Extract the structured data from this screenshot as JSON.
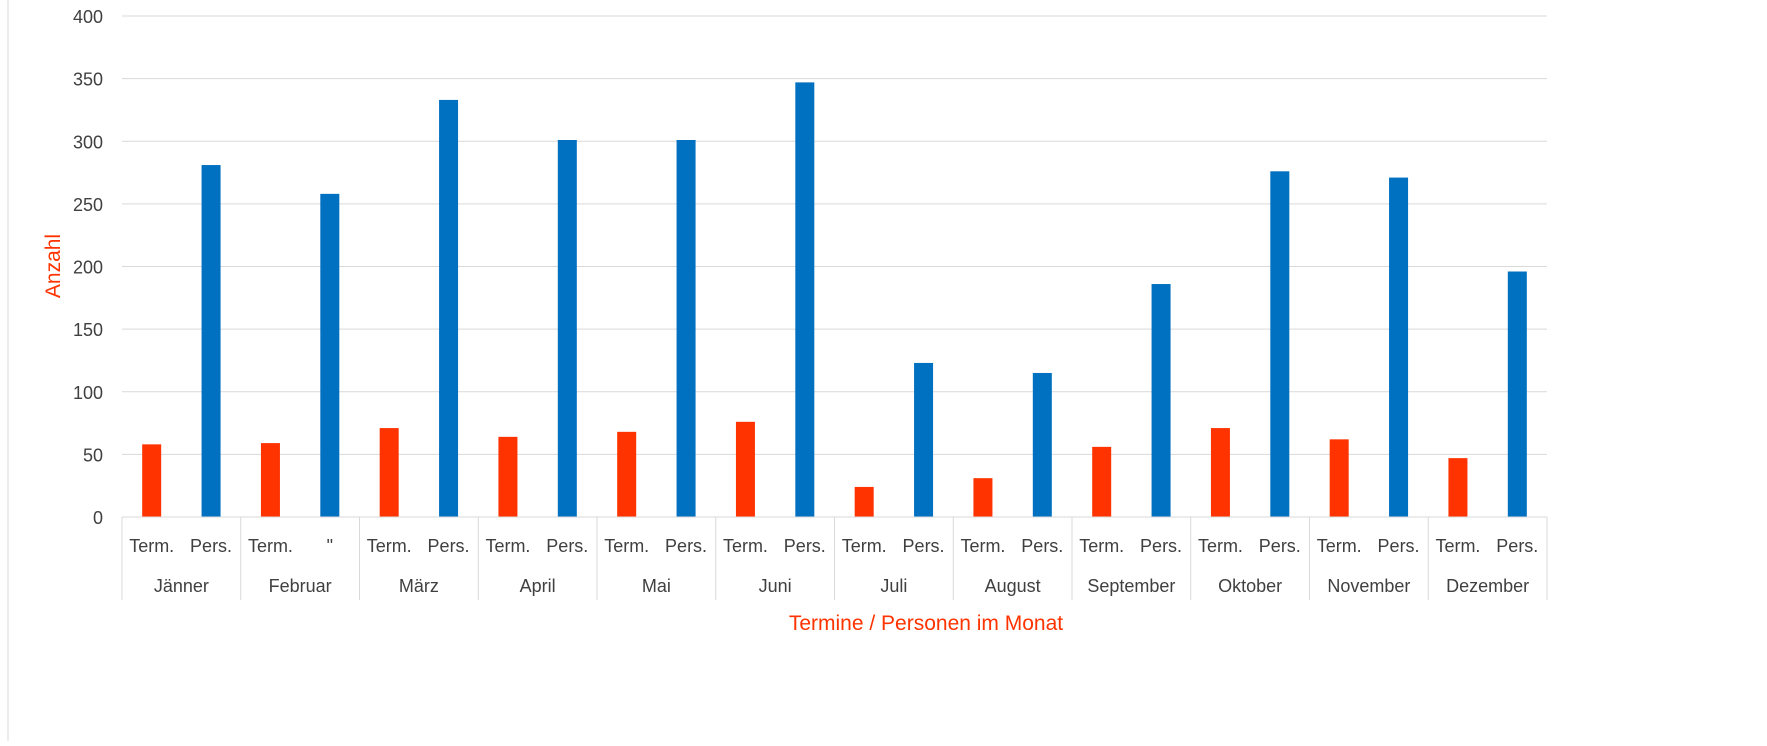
{
  "chart_data": {
    "type": "bar",
    "xlabel": "Termine / Personen im Monat",
    "ylabel": "Anzahl",
    "ylim": [
      0,
      400
    ],
    "yticks": [
      0,
      50,
      100,
      150,
      200,
      250,
      300,
      350,
      400
    ],
    "grid": true,
    "legend": "none",
    "colors": {
      "termine": "#FF3300",
      "personen": "#0070C0",
      "axis_label": "#FF3300",
      "grid": "#D9D9D9"
    },
    "groups": [
      {
        "month": "Jänner",
        "bars": [
          {
            "label": "Term.",
            "value": 58,
            "kind": "termine"
          },
          {
            "label": "Pers.",
            "value": 281,
            "kind": "personen"
          }
        ]
      },
      {
        "month": "Februar",
        "bars": [
          {
            "label": "Term.",
            "value": 59,
            "kind": "termine"
          },
          {
            "label": "\"",
            "value": 258,
            "kind": "personen"
          }
        ]
      },
      {
        "month": "März",
        "bars": [
          {
            "label": "Term.",
            "value": 71,
            "kind": "termine"
          },
          {
            "label": "Pers.",
            "value": 333,
            "kind": "personen"
          }
        ]
      },
      {
        "month": "April",
        "bars": [
          {
            "label": "Term.",
            "value": 64,
            "kind": "termine"
          },
          {
            "label": "Pers.",
            "value": 301,
            "kind": "personen"
          }
        ]
      },
      {
        "month": "Mai",
        "bars": [
          {
            "label": "Term.",
            "value": 68,
            "kind": "termine"
          },
          {
            "label": "Pers.",
            "value": 301,
            "kind": "personen"
          }
        ]
      },
      {
        "month": "Juni",
        "bars": [
          {
            "label": "Term.",
            "value": 76,
            "kind": "termine"
          },
          {
            "label": "Pers.",
            "value": 347,
            "kind": "personen"
          }
        ]
      },
      {
        "month": "Juli",
        "bars": [
          {
            "label": "Term.",
            "value": 24,
            "kind": "termine"
          },
          {
            "label": "Pers.",
            "value": 123,
            "kind": "personen"
          }
        ]
      },
      {
        "month": "August",
        "bars": [
          {
            "label": "Term.",
            "value": 31,
            "kind": "termine"
          },
          {
            "label": "Pers.",
            "value": 115,
            "kind": "personen"
          }
        ]
      },
      {
        "month": "September",
        "bars": [
          {
            "label": "Term.",
            "value": 56,
            "kind": "termine"
          },
          {
            "label": "Pers.",
            "value": 186,
            "kind": "personen"
          }
        ]
      },
      {
        "month": "Oktober",
        "bars": [
          {
            "label": "Term.",
            "value": 71,
            "kind": "termine"
          },
          {
            "label": "Pers.",
            "value": 276,
            "kind": "personen"
          }
        ]
      },
      {
        "month": "November",
        "bars": [
          {
            "label": "Term.",
            "value": 62,
            "kind": "termine"
          },
          {
            "label": "Pers.",
            "value": 271,
            "kind": "personen"
          }
        ]
      },
      {
        "month": "Dezember",
        "bars": [
          {
            "label": "Term.",
            "value": 47,
            "kind": "termine"
          },
          {
            "label": "Pers.",
            "value": 196,
            "kind": "personen"
          }
        ]
      }
    ]
  }
}
